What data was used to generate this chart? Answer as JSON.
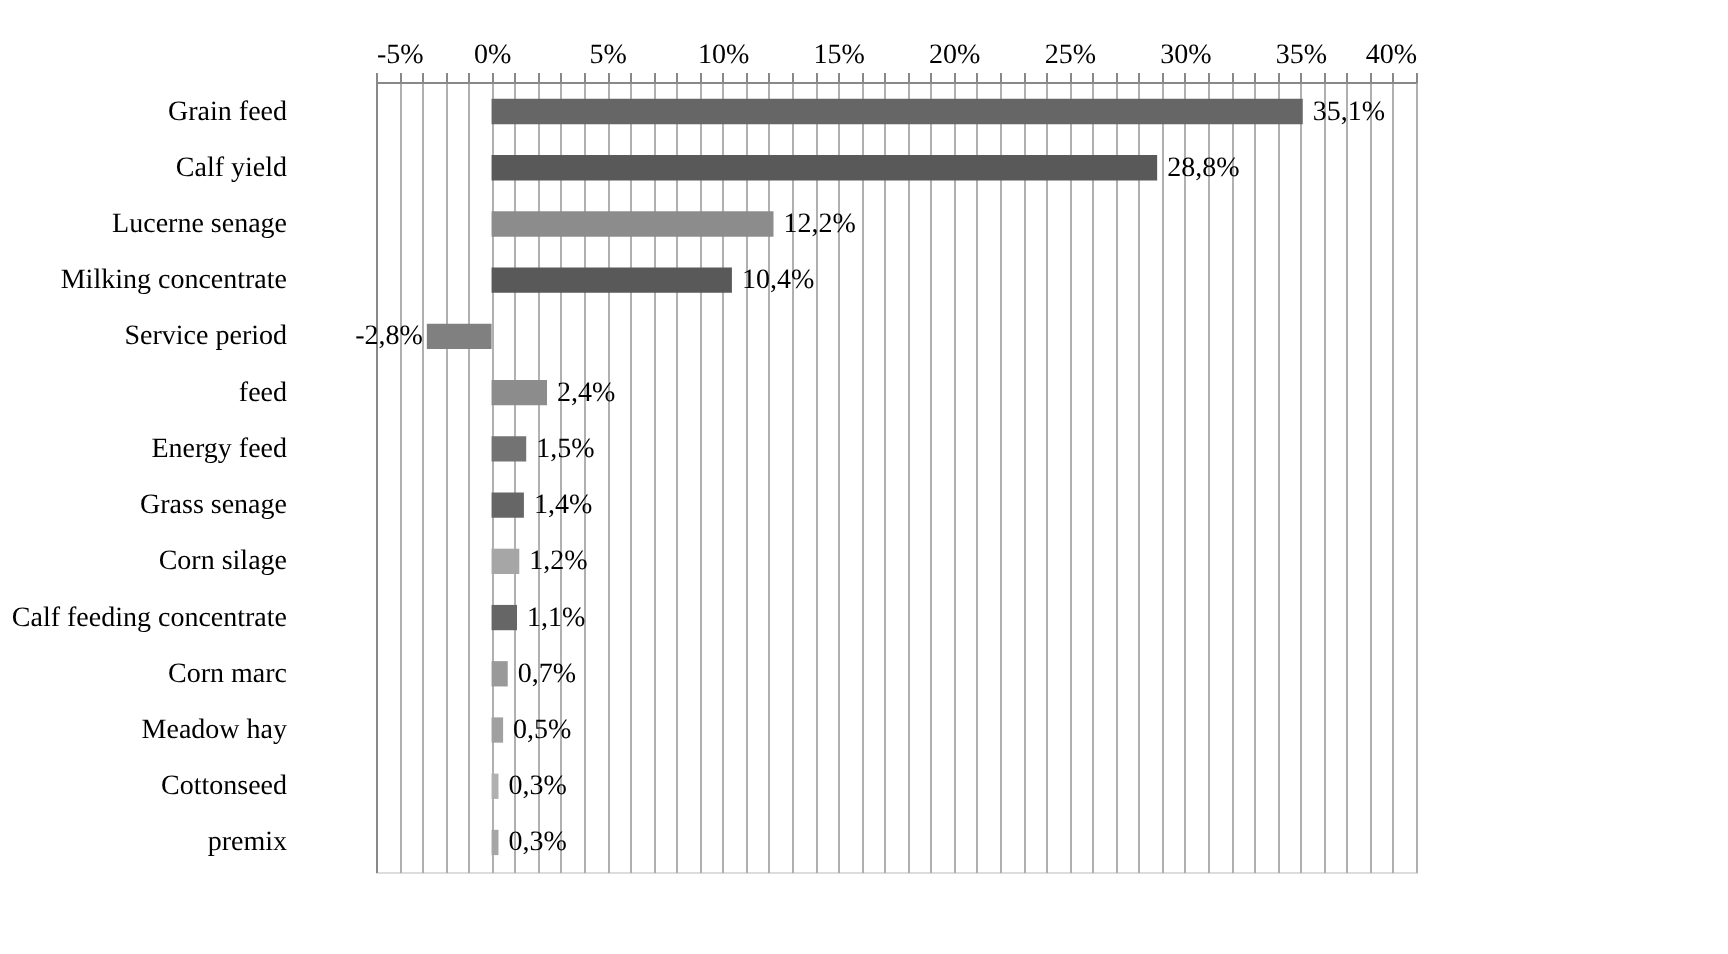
{
  "chart_data": {
    "type": "bar",
    "orientation": "horizontal",
    "categories": [
      "Grain feed",
      "Calf yield",
      "Lucerne senage",
      "Milking concentrate",
      "Service period",
      "feed",
      "Energy feed",
      "Grass senage",
      "Corn silage",
      "Calf feeding concentrate",
      "Corn marc",
      "Meadow hay",
      "Cottonseed",
      "premix"
    ],
    "values": [
      35.1,
      28.8,
      12.2,
      10.4,
      -2.8,
      2.4,
      1.5,
      1.4,
      1.2,
      1.1,
      0.7,
      0.5,
      0.3,
      0.3
    ],
    "value_labels": [
      "35,1%",
      "28,8%",
      "12,2%",
      "10,4%",
      "-2,8%",
      "2,4%",
      "1,5%",
      "1,4%",
      "1,2%",
      "1,1%",
      "0,7%",
      "0,5%",
      "0,3%",
      "0,3%"
    ],
    "colors": [
      "#666666",
      "#595959",
      "#8c8c8c",
      "#595959",
      "#808080",
      "#8c8c8c",
      "#737373",
      "#666666",
      "#a6a6a6",
      "#666666",
      "#999999",
      "#a0a0a0",
      "#b0b0b0",
      "#a6a6a6"
    ],
    "xlim": [
      -5,
      40
    ],
    "xticks": [
      {
        "value": -5,
        "label": "-5%"
      },
      {
        "value": -4,
        "label": null
      },
      {
        "value": -3,
        "label": null
      },
      {
        "value": -2,
        "label": null
      },
      {
        "value": -1,
        "label": null
      },
      {
        "value": 0,
        "label": "0%"
      },
      {
        "value": 1,
        "label": null
      },
      {
        "value": 2,
        "label": null
      },
      {
        "value": 3,
        "label": null
      },
      {
        "value": 4,
        "label": null
      },
      {
        "value": 5,
        "label": "5%"
      },
      {
        "value": 6,
        "label": null
      },
      {
        "value": 7,
        "label": null
      },
      {
        "value": 8,
        "label": null
      },
      {
        "value": 9,
        "label": null
      },
      {
        "value": 10,
        "label": "10%"
      },
      {
        "value": 11,
        "label": null
      },
      {
        "value": 12,
        "label": null
      },
      {
        "value": 13,
        "label": null
      },
      {
        "value": 14,
        "label": null
      },
      {
        "value": 15,
        "label": "15%"
      },
      {
        "value": 16,
        "label": null
      },
      {
        "value": 17,
        "label": null
      },
      {
        "value": 18,
        "label": null
      },
      {
        "value": 19,
        "label": null
      },
      {
        "value": 20,
        "label": "20%"
      },
      {
        "value": 21,
        "label": null
      },
      {
        "value": 22,
        "label": null
      },
      {
        "value": 23,
        "label": null
      },
      {
        "value": 24,
        "label": null
      },
      {
        "value": 25,
        "label": "25%"
      },
      {
        "value": 26,
        "label": null
      },
      {
        "value": 27,
        "label": null
      },
      {
        "value": 28,
        "label": null
      },
      {
        "value": 29,
        "label": null
      },
      {
        "value": 30,
        "label": "30%"
      },
      {
        "value": 31,
        "label": null
      },
      {
        "value": 32,
        "label": null
      },
      {
        "value": 33,
        "label": null
      },
      {
        "value": 34,
        "label": null
      },
      {
        "value": 35,
        "label": "35%"
      },
      {
        "value": 36,
        "label": null
      },
      {
        "value": 37,
        "label": null
      },
      {
        "value": 38,
        "label": null
      },
      {
        "value": 39,
        "label": null
      },
      {
        "value": 40,
        "label": "40%"
      }
    ],
    "grid": "x"
  }
}
